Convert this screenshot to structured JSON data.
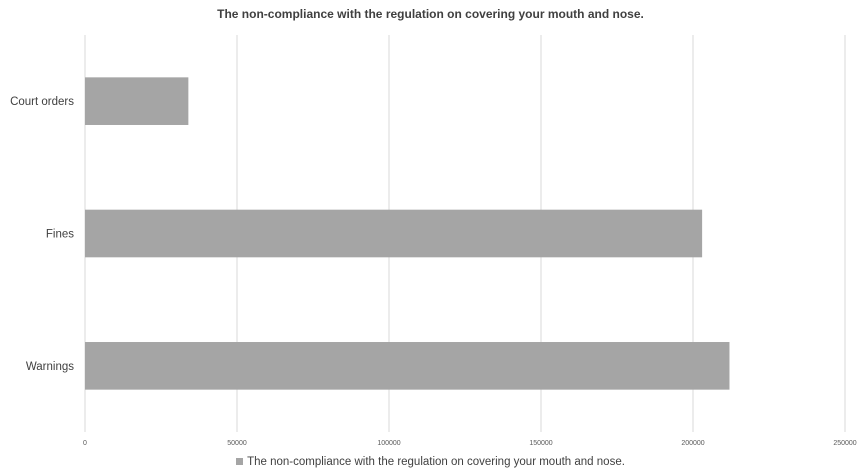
{
  "chart_data": {
    "type": "bar",
    "orientation": "horizontal",
    "title": "The non-compliance with the regulation on covering your mouth and nose.",
    "categories": [
      "Court orders",
      "Fines",
      "Warnings"
    ],
    "series": [
      {
        "name": "The non-compliance with the regulation on covering your mouth and nose.",
        "values": [
          34000,
          203000,
          212000
        ],
        "color": "#a5a5a5"
      }
    ],
    "xlim": [
      0,
      250000
    ],
    "x_ticks": [
      "0",
      "50000",
      "100000",
      "150000",
      "200000",
      "250000"
    ],
    "grid": "vertical",
    "legend_position": "bottom"
  }
}
